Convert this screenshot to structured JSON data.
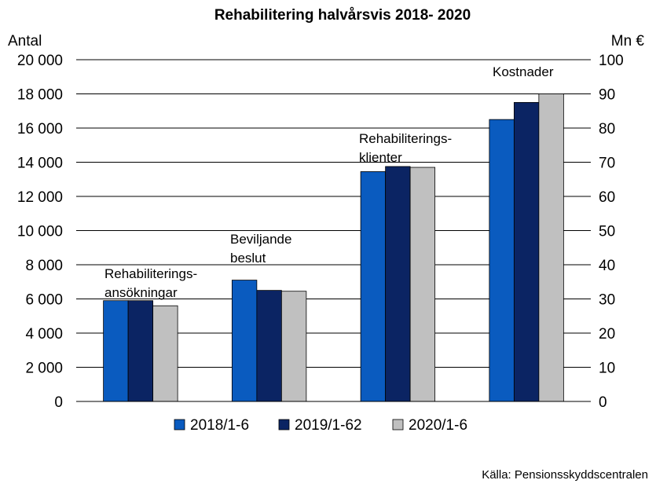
{
  "chart_data": {
    "type": "bar",
    "title": "Rehabilitering halvårsvis 2018- 2020",
    "left_axis_label": "Antal",
    "right_axis_label": "Mn €",
    "left_ticks": [
      "0",
      "2 000",
      "4 000",
      "6 000",
      "8 000",
      "10 000",
      "12 000",
      "14 000",
      "16 000",
      "18 000",
      "20 000"
    ],
    "right_ticks": [
      "0",
      "10",
      "20",
      "30",
      "40",
      "50",
      "60",
      "70",
      "80",
      "90",
      "100"
    ],
    "ylim_left": [
      0,
      20000
    ],
    "ylim_right": [
      0,
      100
    ],
    "grid": true,
    "categories": [
      {
        "lines": [
          "Rehabiliterings-",
          "ansökningar"
        ],
        "axis": "left"
      },
      {
        "lines": [
          "Beviljande",
          "beslut"
        ],
        "axis": "left"
      },
      {
        "lines": [
          "Rehabiliterings-",
          "klienter"
        ],
        "axis": "left"
      },
      {
        "lines": [
          "Kostnader"
        ],
        "axis": "right"
      }
    ],
    "series": [
      {
        "name": "2018/1-6",
        "color": "#0a5bbf",
        "values": [
          5900,
          7100,
          13450,
          82.5
        ]
      },
      {
        "name": "2019/1-62",
        "color": "#0b2463",
        "values": [
          5900,
          6500,
          13750,
          87.5
        ]
      },
      {
        "name": "2020/1-6",
        "color": "#c0c0c0",
        "values": [
          5600,
          6450,
          13700,
          90
        ]
      }
    ],
    "legend_position": "bottom",
    "source": "Källa: Pensionsskyddscentralen"
  }
}
